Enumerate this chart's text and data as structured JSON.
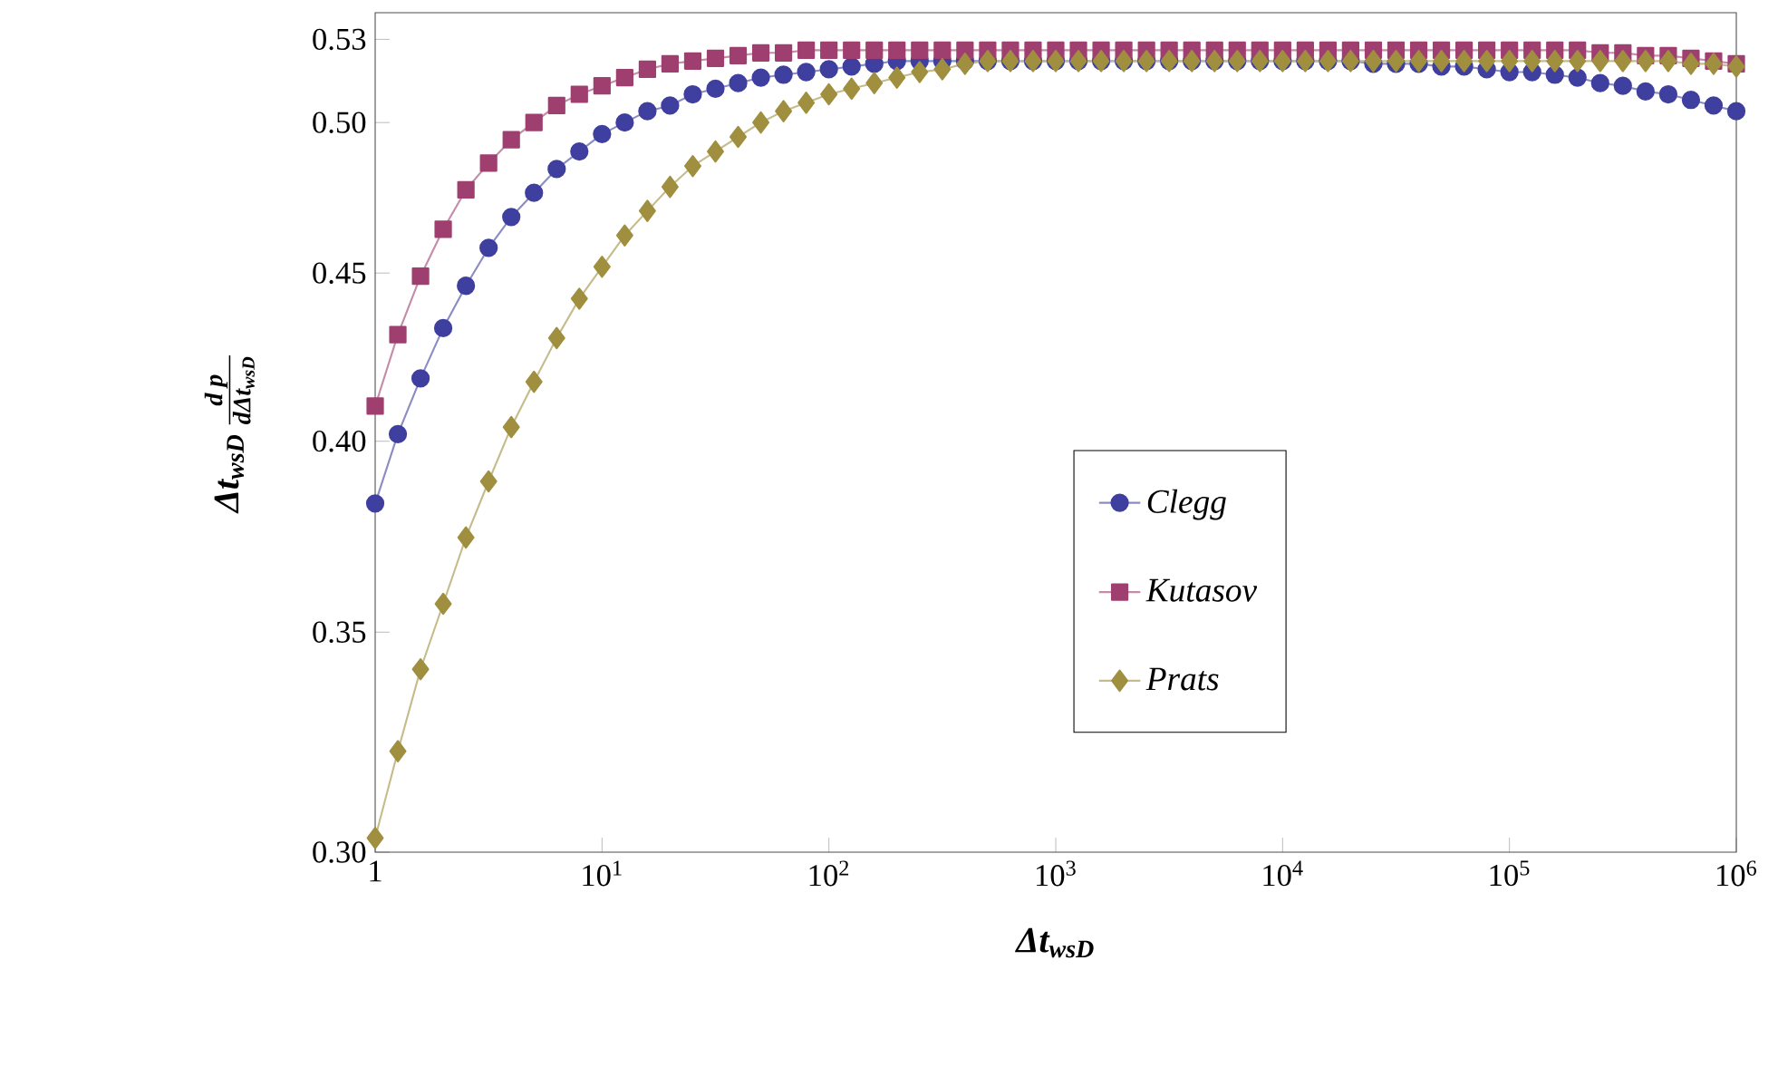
{
  "chart_data": {
    "type": "line",
    "xlabel": "\\text{\\bfseries\\itshape Δt}_{\\text{\\bfseries\\itshape wsD}}",
    "ylabel": "\\text{\\bfseries\\itshape Δt}_{\\text{\\bfseries\\itshape wsD}}\\,\\frac{\\text{\\bfseries\\itshape d p}}{\\text{\\bfseries\\itshape dΔt}_{\\text{\\bfseries\\itshape wsD}}}",
    "log": "xy",
    "x": [
      1,
      1.259,
      1.585,
      1.995,
      2.512,
      3.162,
      3.981,
      5.012,
      6.31,
      7.943,
      10,
      12.59,
      15.85,
      19.95,
      25.12,
      31.62,
      39.81,
      50.12,
      63.1,
      79.43,
      100,
      125.9,
      158.5,
      199.5,
      251.2,
      316.2,
      398.1,
      501.2,
      631,
      794.3,
      1000,
      1259,
      1585,
      1995,
      2512,
      3162,
      3981,
      5012,
      6310,
      7943,
      10000,
      12590,
      15850,
      19950,
      25120,
      31620,
      39810,
      50120,
      63100,
      79430,
      100000,
      125900,
      158500,
      199500,
      251200,
      316200,
      398100,
      501200,
      631000,
      794300,
      1000000
    ],
    "series": [
      {
        "name": "Clegg",
        "color": "#3f3f9f",
        "marker": "circle",
        "values": [
          0.383,
          0.402,
          0.418,
          0.433,
          0.446,
          0.458,
          0.468,
          0.476,
          0.484,
          0.49,
          0.496,
          0.5,
          0.504,
          0.506,
          0.51,
          0.512,
          0.514,
          0.516,
          0.517,
          0.518,
          0.519,
          0.52,
          0.521,
          0.522,
          0.522,
          0.522,
          0.522,
          0.522,
          0.522,
          0.522,
          0.522,
          0.522,
          0.522,
          0.522,
          0.522,
          0.522,
          0.522,
          0.522,
          0.522,
          0.522,
          0.522,
          0.522,
          0.522,
          0.522,
          0.521,
          0.521,
          0.521,
          0.52,
          0.52,
          0.519,
          0.518,
          0.518,
          0.517,
          0.516,
          0.514,
          0.513,
          0.511,
          0.51,
          0.508,
          0.506,
          0.504
        ]
      },
      {
        "name": "Kutasov",
        "color": "#9f3f6f",
        "marker": "square",
        "values": [
          0.41,
          0.431,
          0.449,
          0.464,
          0.477,
          0.486,
          0.494,
          0.5,
          0.506,
          0.51,
          0.513,
          0.516,
          0.519,
          0.521,
          0.522,
          0.523,
          0.524,
          0.525,
          0.525,
          0.526,
          0.526,
          0.526,
          0.526,
          0.526,
          0.526,
          0.526,
          0.526,
          0.526,
          0.526,
          0.526,
          0.526,
          0.526,
          0.526,
          0.526,
          0.526,
          0.526,
          0.526,
          0.526,
          0.526,
          0.526,
          0.526,
          0.526,
          0.526,
          0.526,
          0.526,
          0.526,
          0.526,
          0.526,
          0.526,
          0.526,
          0.526,
          0.526,
          0.526,
          0.526,
          0.525,
          0.525,
          0.524,
          0.524,
          0.523,
          0.522,
          0.521
        ]
      },
      {
        "name": "Prats",
        "color": "#9f8f3f",
        "marker": "diamond",
        "values": [
          0.303,
          0.322,
          0.341,
          0.357,
          0.374,
          0.389,
          0.404,
          0.417,
          0.43,
          0.442,
          0.452,
          0.462,
          0.47,
          0.478,
          0.485,
          0.49,
          0.495,
          0.5,
          0.504,
          0.507,
          0.51,
          0.512,
          0.514,
          0.516,
          0.518,
          0.519,
          0.521,
          0.522,
          0.522,
          0.522,
          0.522,
          0.522,
          0.522,
          0.522,
          0.522,
          0.522,
          0.522,
          0.522,
          0.522,
          0.522,
          0.522,
          0.522,
          0.522,
          0.522,
          0.522,
          0.522,
          0.522,
          0.522,
          0.522,
          0.522,
          0.522,
          0.522,
          0.522,
          0.522,
          0.522,
          0.522,
          0.522,
          0.522,
          0.521,
          0.521,
          0.52
        ]
      }
    ],
    "xlim": [
      1,
      1000000
    ],
    "xticks": [
      1,
      {
        "value": 10,
        "label": "10$^{1}$"
      },
      {
        "value": 100,
        "label": "10$^{2}$"
      },
      {
        "value": 1000,
        "label": "10$^{3}$"
      },
      {
        "value": 10000,
        "label": "10$^{4}$"
      },
      {
        "value": 100000,
        "label": "10$^{5}$"
      },
      {
        "value": 1000000,
        "label": "10$^{6}$"
      }
    ],
    "ylim": [
      0.3,
      0.54
    ],
    "yticks": [
      {
        "value": 0.3,
        "label": "0.30"
      },
      {
        "value": 0.35,
        "label": "0.35"
      },
      {
        "value": 0.4,
        "label": "0.40"
      },
      {
        "value": 0.45,
        "label": "0.45"
      },
      {
        "value": 0.5,
        "label": "0.50"
      },
      {
        "value": 0.53,
        "label": "0.53"
      }
    ],
    "legend": "center",
    "line_style": "solid"
  }
}
